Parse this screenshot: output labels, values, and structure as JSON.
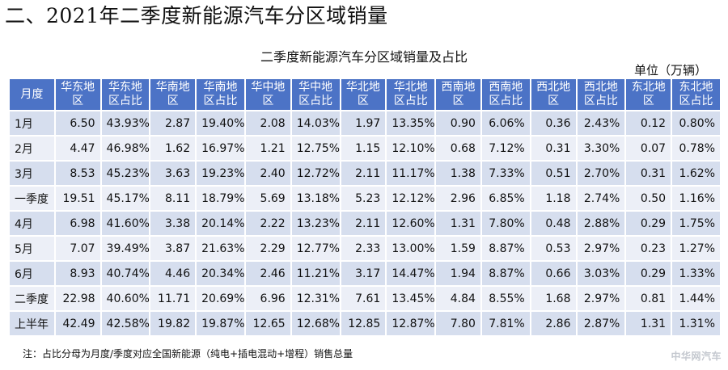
{
  "heading": "二、2021年二季度新能源汽车分区域销量",
  "table_title": "二季度新能源汽车分区域销量及占比",
  "unit": "单位（万辆）",
  "columns": [
    "月度",
    "华东地区",
    "华东地区占比",
    "华南地区",
    "华南地区占比",
    "华中地区",
    "华中地区占比",
    "华北地区",
    "华北地区占比",
    "西南地区",
    "西南地区占比",
    "西北地区",
    "西北地区占比",
    "东北地区",
    "东北地区占比"
  ],
  "rows": [
    [
      "1月",
      "6.50",
      "43.93%",
      "2.87",
      "19.40%",
      "2.08",
      "14.03%",
      "1.97",
      "13.35%",
      "0.90",
      "6.06%",
      "0.36",
      "2.43%",
      "0.12",
      "0.80%"
    ],
    [
      "2月",
      "4.47",
      "46.98%",
      "1.62",
      "16.97%",
      "1.21",
      "12.75%",
      "1.15",
      "12.10%",
      "0.68",
      "7.12%",
      "0.31",
      "3.30%",
      "0.07",
      "0.78%"
    ],
    [
      "3月",
      "8.53",
      "45.23%",
      "3.63",
      "19.23%",
      "2.40",
      "12.72%",
      "2.11",
      "11.17%",
      "1.38",
      "7.33%",
      "0.51",
      "2.70%",
      "0.31",
      "1.62%"
    ],
    [
      "一季度",
      "19.51",
      "45.17%",
      "8.11",
      "18.79%",
      "5.69",
      "13.18%",
      "5.23",
      "12.12%",
      "2.96",
      "6.85%",
      "1.18",
      "2.74%",
      "0.50",
      "1.16%"
    ],
    [
      "4月",
      "6.98",
      "41.60%",
      "3.38",
      "20.14%",
      "2.22",
      "13.23%",
      "2.11",
      "12.60%",
      "1.31",
      "7.80%",
      "0.48",
      "2.88%",
      "0.29",
      "1.75%"
    ],
    [
      "5月",
      "7.07",
      "39.49%",
      "3.87",
      "21.63%",
      "2.29",
      "12.77%",
      "2.33",
      "13.00%",
      "1.59",
      "8.87%",
      "0.53",
      "2.97%",
      "0.23",
      "1.27%"
    ],
    [
      "6月",
      "8.93",
      "40.74%",
      "4.46",
      "20.34%",
      "2.46",
      "11.21%",
      "3.17",
      "14.47%",
      "1.94",
      "8.87%",
      "0.66",
      "3.03%",
      "0.29",
      "1.33%"
    ],
    [
      "二季度",
      "22.98",
      "40.60%",
      "11.71",
      "20.69%",
      "6.96",
      "12.31%",
      "7.61",
      "13.45%",
      "4.84",
      "8.55%",
      "1.68",
      "2.97%",
      "0.81",
      "1.44%"
    ],
    [
      "上半年",
      "42.49",
      "42.58%",
      "19.82",
      "19.87%",
      "12.65",
      "12.68%",
      "12.85",
      "12.87%",
      "7.80",
      "7.81%",
      "2.86",
      "2.87%",
      "1.31",
      "1.31%"
    ]
  ],
  "note": "注：占比分母为月度/季度对应全国新能源（纯电+插电混动+增程）销售总量",
  "watermark": "中华网汽车",
  "colors": {
    "header_bg": "#4c73c6",
    "row_odd_bg": "#d6deee",
    "row_even_bg": "#eceff7"
  }
}
